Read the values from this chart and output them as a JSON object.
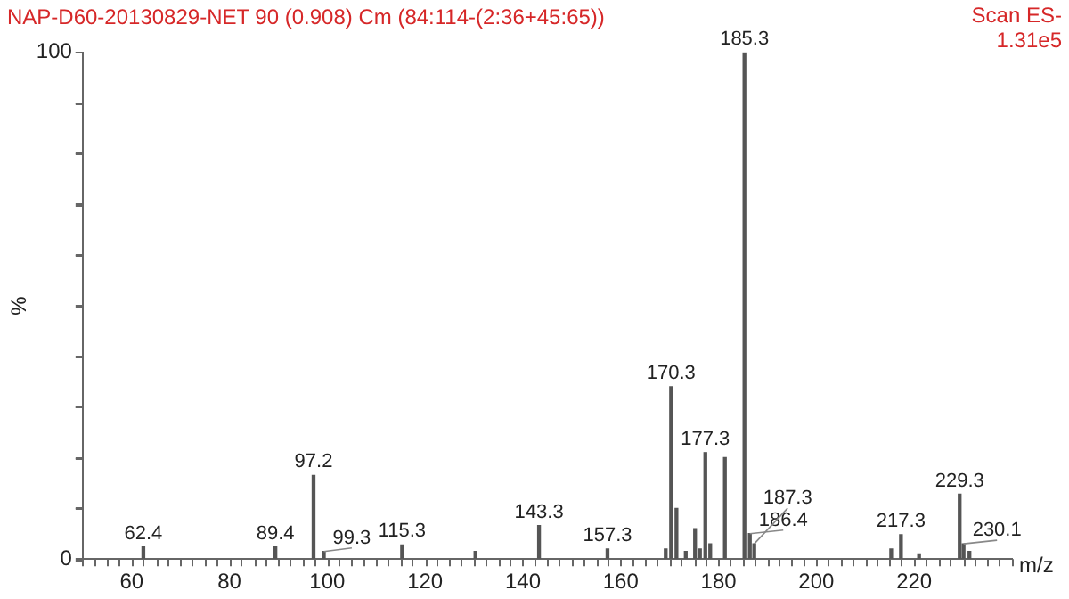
{
  "chart_data": {
    "type": "bar",
    "title": "NAP-D60-20130829-NET 90 (0.908) Cm (84:114-(2:36+45:65))",
    "annotations": [
      "Scan ES-",
      "1.31e5",
      {
        "text": "62.4",
        "x": 62.4,
        "y": 2.4
      },
      {
        "text": "89.4",
        "x": 89.4,
        "y": 2.4
      },
      {
        "text": "97.2",
        "x": 97.2,
        "y": 16.5
      },
      {
        "text": "99.3",
        "x": 99.3,
        "y": 1.5
      },
      {
        "text": "115.3",
        "x": 115.3,
        "y": 2.8
      },
      {
        "text": "143.3",
        "x": 143.3,
        "y": 6.6
      },
      {
        "text": "157.3",
        "x": 157.3,
        "y": 2
      },
      {
        "text": "170.3",
        "x": 170.3,
        "y": 34
      },
      {
        "text": "177.3",
        "x": 177.3,
        "y": 21
      },
      {
        "text": "185.3",
        "x": 185.3,
        "y": 100
      },
      {
        "text": "186.4",
        "x": 186.4,
        "y": 5
      },
      {
        "text": "187.3",
        "x": 187.3,
        "y": 3
      },
      {
        "text": "217.3",
        "x": 217.3,
        "y": 4.8
      },
      {
        "text": "229.3",
        "x": 229.3,
        "y": 12.8
      },
      {
        "text": "230.1",
        "x": 230.1,
        "y": 3
      }
    ],
    "xlabel": "m/z",
    "ylabel": "%",
    "x": [
      62.4,
      89.4,
      97.2,
      99.3,
      115.3,
      130.3,
      143.3,
      157.3,
      169.2,
      170.3,
      171.4,
      173.3,
      175.2,
      176.2,
      177.3,
      178.3,
      181.3,
      185.3,
      186.4,
      187.3,
      215.3,
      217.3,
      221.0,
      229.3,
      230.1,
      231.3
    ],
    "values": [
      2.4,
      2.4,
      16.5,
      1.5,
      2.8,
      1.5,
      6.6,
      2,
      2,
      34,
      10,
      1.5,
      6,
      2,
      21,
      3,
      20,
      100,
      5,
      3,
      2,
      4.8,
      1,
      12.8,
      3,
      1.5
    ],
    "color": "#555555",
    "xlim": [
      50,
      240
    ],
    "xticks": [
      {
        "value": 50,
        "label": null
      },
      {
        "value": 55,
        "label": null
      },
      60,
      {
        "value": 65,
        "label": null
      },
      {
        "value": 70,
        "label": null
      },
      {
        "value": 75,
        "label": null
      },
      80,
      {
        "value": 85,
        "label": null
      },
      {
        "value": 90,
        "label": null
      },
      {
        "value": 95,
        "label": null
      },
      100,
      {
        "value": 105,
        "label": null
      },
      {
        "value": 110,
        "label": null
      },
      {
        "value": 115,
        "label": null
      },
      120,
      {
        "value": 125,
        "label": null
      },
      {
        "value": 130,
        "label": null
      },
      {
        "value": 135,
        "label": null
      },
      140,
      {
        "value": 145,
        "label": null
      },
      {
        "value": 150,
        "label": null
      },
      {
        "value": 155,
        "label": null
      },
      160,
      {
        "value": 165,
        "label": null
      },
      {
        "value": 170,
        "label": null
      },
      {
        "value": 175,
        "label": null
      },
      180,
      {
        "value": 185,
        "label": null
      },
      {
        "value": 190,
        "label": null
      },
      {
        "value": 195,
        "label": null
      },
      200,
      {
        "value": 205,
        "label": null
      },
      {
        "value": 210,
        "label": null
      },
      {
        "value": 215,
        "label": null
      },
      220,
      {
        "value": 225,
        "label": null
      },
      {
        "value": 230,
        "label": null
      },
      {
        "value": 235,
        "label": null
      },
      {
        "value": 240,
        "label": null
      }
    ],
    "ylim": [
      0,
      100
    ],
    "yticks": [
      0,
      {
        "value": 10,
        "label": null
      },
      {
        "value": 20,
        "label": null
      },
      {
        "value": 30,
        "label": null
      },
      {
        "value": 40,
        "label": null
      },
      {
        "value": 50,
        "label": null
      },
      {
        "value": 60,
        "label": null
      },
      {
        "value": 70,
        "label": null
      },
      {
        "value": 80,
        "label": null
      },
      {
        "value": 90,
        "label": null
      },
      100
    ],
    "grid": false,
    "legend": false
  }
}
